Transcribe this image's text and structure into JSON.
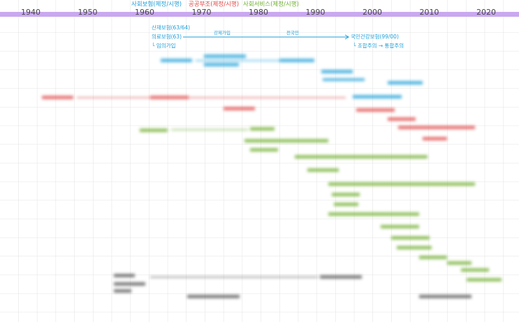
{
  "timeline": {
    "decades": [
      "1940",
      "1950",
      "1960",
      "1970",
      "1980",
      "1990",
      "2000",
      "2010",
      "2020"
    ],
    "headers": {
      "social_insurance": "사회보험(제정/시행)",
      "public_assistance": "공공부조(제정/시행)",
      "social_service": "사회서비스(제정/시행)"
    },
    "insurance_notes": {
      "industrial_accident": "산재보험(63/64)",
      "medical": "의료보험(63)",
      "voluntary": "└ 임의가입",
      "mandatory": "강제가입",
      "nationwide": "전국민",
      "national_health": "국민건강보험(99/00)",
      "integration": "└ 조합주의 → 통합주의"
    }
  }
}
